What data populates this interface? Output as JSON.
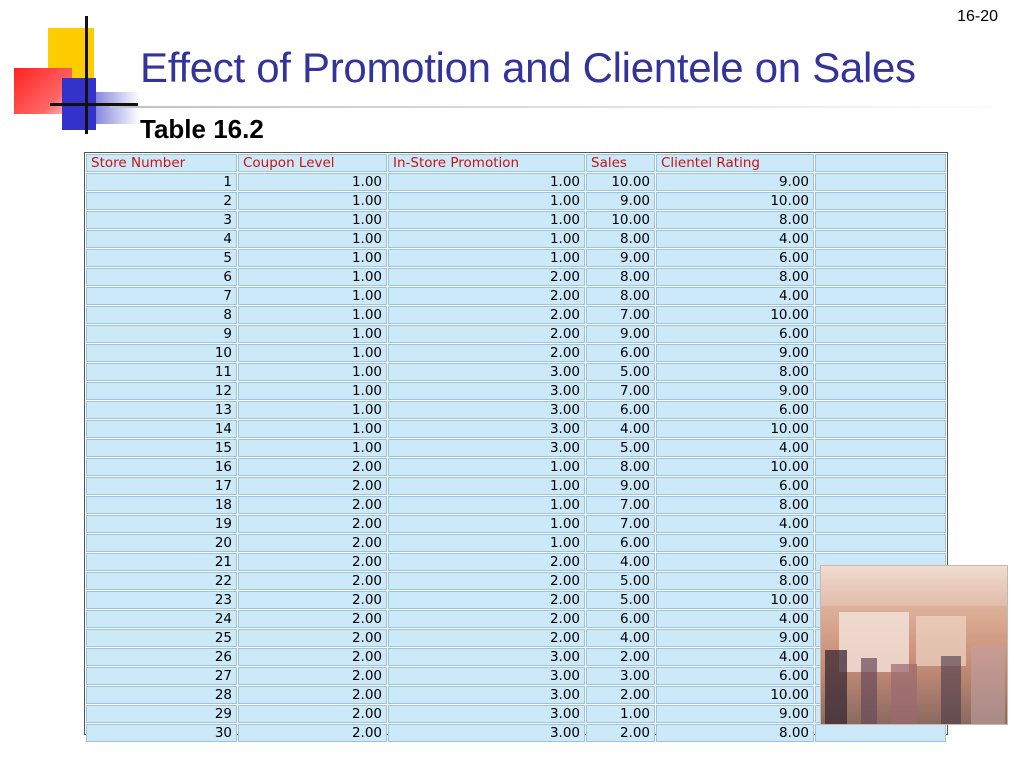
{
  "slide_number": "16-20",
  "title": "Effect of Promotion and Clientele on Sales",
  "subtitle": "Table 16.2",
  "table": {
    "headers": [
      "Store Number",
      "Coupon Level",
      "In-Store Promotion",
      "Sales",
      "Clientel Rating",
      ""
    ],
    "rows": [
      [
        "1",
        "1.00",
        "1.00",
        "10.00",
        "9.00",
        ""
      ],
      [
        "2",
        "1.00",
        "1.00",
        "9.00",
        "10.00",
        ""
      ],
      [
        "3",
        "1.00",
        "1.00",
        "10.00",
        "8.00",
        ""
      ],
      [
        "4",
        "1.00",
        "1.00",
        "8.00",
        "4.00",
        ""
      ],
      [
        "5",
        "1.00",
        "1.00",
        "9.00",
        "6.00",
        ""
      ],
      [
        "6",
        "1.00",
        "2.00",
        "8.00",
        "8.00",
        ""
      ],
      [
        "7",
        "1.00",
        "2.00",
        "8.00",
        "4.00",
        ""
      ],
      [
        "8",
        "1.00",
        "2.00",
        "7.00",
        "10.00",
        ""
      ],
      [
        "9",
        "1.00",
        "2.00",
        "9.00",
        "6.00",
        ""
      ],
      [
        "10",
        "1.00",
        "2.00",
        "6.00",
        "9.00",
        ""
      ],
      [
        "11",
        "1.00",
        "3.00",
        "5.00",
        "8.00",
        ""
      ],
      [
        "12",
        "1.00",
        "3.00",
        "7.00",
        "9.00",
        ""
      ],
      [
        "13",
        "1.00",
        "3.00",
        "6.00",
        "6.00",
        ""
      ],
      [
        "14",
        "1.00",
        "3.00",
        "4.00",
        "10.00",
        ""
      ],
      [
        "15",
        "1.00",
        "3.00",
        "5.00",
        "4.00",
        ""
      ],
      [
        "16",
        "2.00",
        "1.00",
        "8.00",
        "10.00",
        ""
      ],
      [
        "17",
        "2.00",
        "1.00",
        "9.00",
        "6.00",
        ""
      ],
      [
        "18",
        "2.00",
        "1.00",
        "7.00",
        "8.00",
        ""
      ],
      [
        "19",
        "2.00",
        "1.00",
        "7.00",
        "4.00",
        ""
      ],
      [
        "20",
        "2.00",
        "1.00",
        "6.00",
        "9.00",
        ""
      ],
      [
        "21",
        "2.00",
        "2.00",
        "4.00",
        "6.00",
        ""
      ],
      [
        "22",
        "2.00",
        "2.00",
        "5.00",
        "8.00",
        ""
      ],
      [
        "23",
        "2.00",
        "2.00",
        "5.00",
        "10.00",
        ""
      ],
      [
        "24",
        "2.00",
        "2.00",
        "6.00",
        "4.00",
        ""
      ],
      [
        "25",
        "2.00",
        "2.00",
        "4.00",
        "9.00",
        ""
      ],
      [
        "26",
        "2.00",
        "3.00",
        "2.00",
        "4.00",
        ""
      ],
      [
        "27",
        "2.00",
        "3.00",
        "3.00",
        "6.00",
        ""
      ],
      [
        "28",
        "2.00",
        "3.00",
        "2.00",
        "10.00",
        ""
      ],
      [
        "29",
        "2.00",
        "3.00",
        "1.00",
        "9.00",
        ""
      ],
      [
        "30",
        "2.00",
        "3.00",
        "2.00",
        "8.00",
        ""
      ]
    ]
  },
  "colors": {
    "title": "#333399",
    "header_text": "#cc1111",
    "cell_background": "#cce9f9",
    "logo_yellow": "#ffcc00",
    "logo_red": "#ff3333",
    "logo_blue": "#3333cc"
  },
  "images": {
    "logo": "colored-squares-logo",
    "photo": "shopping-mall-photo"
  }
}
